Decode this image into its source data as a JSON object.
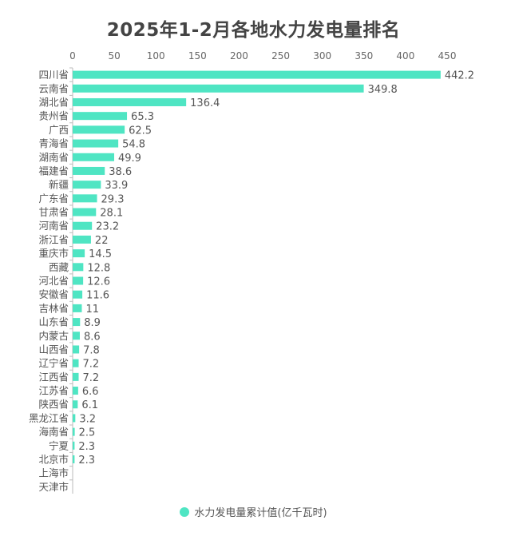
{
  "chart_data": {
    "type": "bar",
    "orientation": "horizontal",
    "title": "2025年1-2月各地水力发电量排名",
    "categories": [
      "四川省",
      "云南省",
      "湖北省",
      "贵州省",
      "广西",
      "青海省",
      "湖南省",
      "福建省",
      "新疆",
      "广东省",
      "甘肃省",
      "河南省",
      "浙江省",
      "重庆市",
      "西藏",
      "河北省",
      "安徽省",
      "吉林省",
      "山东省",
      "内蒙古",
      "山西省",
      "辽宁省",
      "江西省",
      "江苏省",
      "陕西省",
      "黑龙江省",
      "海南省",
      "宁夏",
      "北京市",
      "上海市",
      "天津市"
    ],
    "series": [
      {
        "name": "水力发电量累计值(亿千瓦时)",
        "values": [
          442.2,
          349.8,
          136.4,
          65.3,
          62.5,
          54.8,
          49.9,
          38.6,
          33.9,
          29.3,
          28.1,
          23.2,
          22,
          14.5,
          12.8,
          12.6,
          11.6,
          11,
          8.9,
          8.6,
          7.8,
          7.2,
          7.2,
          6.6,
          6.1,
          3.2,
          2.5,
          2.3,
          2.3,
          null,
          null
        ],
        "color": "#4fe5c3"
      }
    ],
    "xlim": [
      0,
      450
    ],
    "xticks": [
      0,
      50,
      100,
      150,
      200,
      250,
      300,
      350,
      400,
      450
    ],
    "xaxis_position": "top",
    "grid": false,
    "legend_position": "bottom"
  }
}
